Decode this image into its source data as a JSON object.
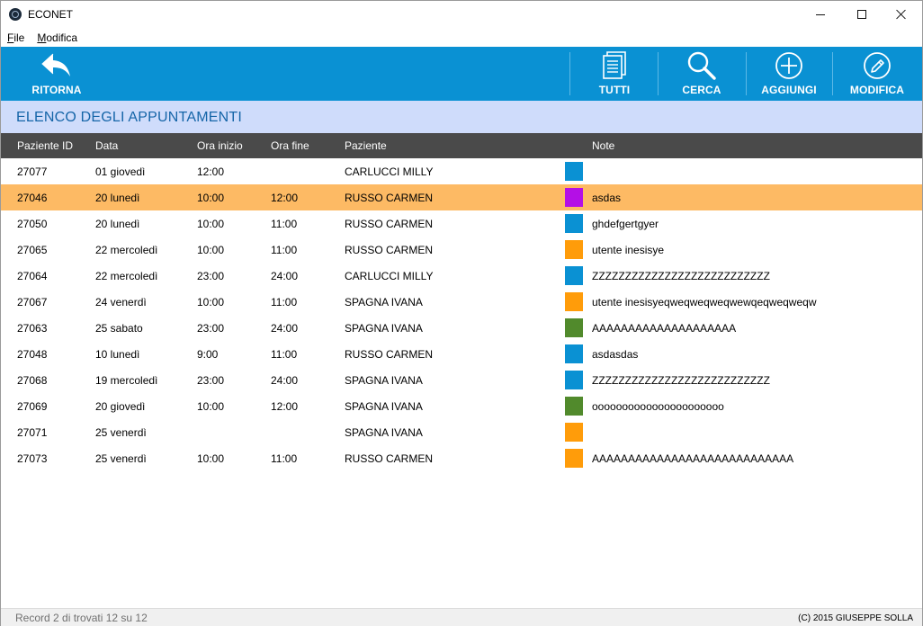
{
  "window": {
    "title": "ECONET"
  },
  "menu": [
    {
      "accel": "F",
      "rest": "ile"
    },
    {
      "accel": "M",
      "rest": "odifica"
    }
  ],
  "toolbar": {
    "back_label": "RITORNA",
    "tutti_label": "TUTTI",
    "cerca_label": "CERCA",
    "aggiungi_label": "AGGIUNGI",
    "modifica_label": "MODIFICA",
    "background": "#0a91d3"
  },
  "section": {
    "title": "ELENCO DEGLI APPUNTAMENTI"
  },
  "table": {
    "columns": [
      "Paziente ID",
      "Data",
      "Ora inizio",
      "Ora fine",
      "Paziente",
      "Note"
    ],
    "selected_index": 1,
    "selected_color": "#fdba64",
    "rows": [
      {
        "id": "27077",
        "data": "01 giovedì",
        "inizio": "12:00",
        "fine": "",
        "paziente": "CARLUCCI MILLY",
        "color": "#0a91d3",
        "note": ""
      },
      {
        "id": "27046",
        "data": "20 lunedì",
        "inizio": "10:00",
        "fine": "12:00",
        "paziente": "RUSSO CARMEN",
        "color": "#b40fe6",
        "note": "asdas"
      },
      {
        "id": "27050",
        "data": "20 lunedì",
        "inizio": "10:00",
        "fine": "11:00",
        "paziente": "RUSSO CARMEN",
        "color": "#0a91d3",
        "note": "ghdefgertgyer"
      },
      {
        "id": "27065",
        "data": "22 mercoledì",
        "inizio": "10:00",
        "fine": "11:00",
        "paziente": "RUSSO CARMEN",
        "color": "#ff9c0a",
        "note": "utente inesisye"
      },
      {
        "id": "27064",
        "data": "22 mercoledì",
        "inizio": "23:00",
        "fine": "24:00",
        "paziente": "CARLUCCI MILLY",
        "color": "#0a91d3",
        "note": "ZZZZZZZZZZZZZZZZZZZZZZZZZZZ"
      },
      {
        "id": "27067",
        "data": "24 venerdì",
        "inizio": "10:00",
        "fine": "11:00",
        "paziente": "SPAGNA IVANA",
        "color": "#ff9c0a",
        "note": "utente inesisyeqweqweqweqwewqeqweqweqw"
      },
      {
        "id": "27063",
        "data": "25 sabato",
        "inizio": "23:00",
        "fine": "24:00",
        "paziente": "SPAGNA IVANA",
        "color": "#518a2c",
        "note": "AAAAAAAAAAAAAAAAAAAA"
      },
      {
        "id": "27048",
        "data": "10 lunedì",
        "inizio": "9:00",
        "fine": "11:00",
        "paziente": "RUSSO CARMEN",
        "color": "#0a91d3",
        "note": "asdasdas"
      },
      {
        "id": "27068",
        "data": "19 mercoledì",
        "inizio": "23:00",
        "fine": "24:00",
        "paziente": "SPAGNA IVANA",
        "color": "#0a91d3",
        "note": "ZZZZZZZZZZZZZZZZZZZZZZZZZZZ"
      },
      {
        "id": "27069",
        "data": "20 giovedì",
        "inizio": "10:00",
        "fine": "12:00",
        "paziente": "SPAGNA IVANA",
        "color": "#518a2c",
        "note": "oooooooooooooooooooooo"
      },
      {
        "id": "27071",
        "data": "25 venerdì",
        "inizio": "",
        "fine": "",
        "paziente": "SPAGNA IVANA",
        "color": "#ff9c0a",
        "note": ""
      },
      {
        "id": "27073",
        "data": "25 venerdì",
        "inizio": "10:00",
        "fine": "11:00",
        "paziente": "RUSSO CARMEN",
        "color": "#ff9c0a",
        "note": "AAAAAAAAAAAAAAAAAAAAAAAAAAAA"
      }
    ]
  },
  "status": {
    "left": "Record 2 di trovati 12 su 12",
    "right": "(C) 2015 GIUSEPPE SOLLA"
  },
  "icons": {
    "app": "app-globe-icon",
    "back": "reply-arrow-icon",
    "tutti": "documents-icon",
    "cerca": "search-icon",
    "aggiungi": "plus-circle-icon",
    "modifica": "pencil-circle-icon"
  }
}
